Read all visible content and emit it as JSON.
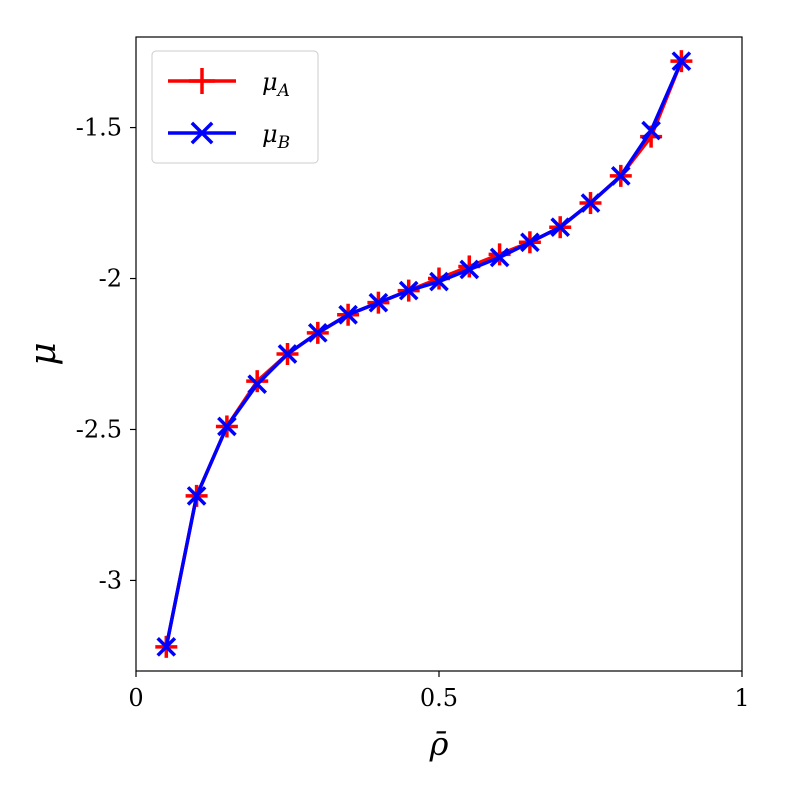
{
  "chart_data": {
    "type": "line",
    "xlabel": "ρ̄",
    "ylabel": "μ",
    "xlim": [
      0,
      1
    ],
    "ylim": [
      -3.3,
      -1.2
    ],
    "x_ticks": [
      0,
      0.5,
      1
    ],
    "x_tick_labels": [
      "0",
      "0.5",
      "1"
    ],
    "y_ticks": [
      -3,
      -2.5,
      -2,
      -1.5
    ],
    "y_tick_labels": [
      "-3",
      "-2.5",
      "-2",
      "-1.5"
    ],
    "grid": false,
    "legend_position": "top-left",
    "series": [
      {
        "name": "μA",
        "name_base": "μ",
        "name_sub": "A",
        "color": "#ff0000",
        "marker": "plus",
        "x": [
          0.05,
          0.1,
          0.15,
          0.2,
          0.25,
          0.3,
          0.35,
          0.4,
          0.45,
          0.5,
          0.55,
          0.6,
          0.65,
          0.7,
          0.75,
          0.8,
          0.85,
          0.9
        ],
        "y": [
          -3.22,
          -2.72,
          -2.49,
          -2.34,
          -2.25,
          -2.18,
          -2.12,
          -2.08,
          -2.04,
          -2.0,
          -1.96,
          -1.92,
          -1.88,
          -1.83,
          -1.75,
          -1.66,
          -1.53,
          -1.28
        ]
      },
      {
        "name": "μB",
        "name_base": "μ",
        "name_sub": "B",
        "color": "#0000ff",
        "marker": "x",
        "x": [
          0.05,
          0.1,
          0.15,
          0.2,
          0.25,
          0.3,
          0.35,
          0.4,
          0.45,
          0.5,
          0.55,
          0.6,
          0.65,
          0.7,
          0.75,
          0.8,
          0.85,
          0.9
        ],
        "y": [
          -3.22,
          -2.72,
          -2.49,
          -2.35,
          -2.25,
          -2.18,
          -2.12,
          -2.08,
          -2.04,
          -2.01,
          -1.97,
          -1.93,
          -1.88,
          -1.83,
          -1.75,
          -1.66,
          -1.51,
          -1.28
        ]
      }
    ]
  }
}
